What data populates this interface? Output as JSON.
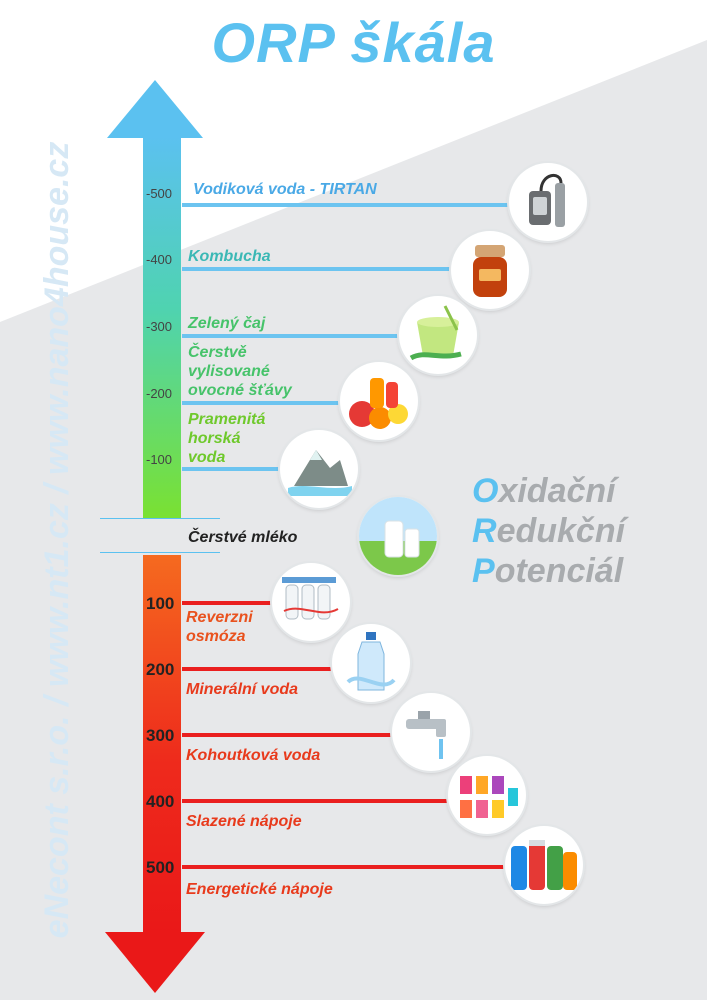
{
  "title": "ORP škála",
  "side_text": "eNecont s.r.o. / www.nt1.cz / www.nano4house.cz",
  "neutral_label": "Čerstvé mléko",
  "orp_words": [
    {
      "initial": "O",
      "rest": "xidační"
    },
    {
      "initial": "R",
      "rest": "edukční"
    },
    {
      "initial": "P",
      "rest": "otenciál"
    }
  ],
  "negative_items": [
    {
      "tick": "-500",
      "label": "Vodiková voda - TIRTAN",
      "icon": "hydrogen-generator-icon"
    },
    {
      "tick": "-400",
      "label": "Kombucha",
      "icon": "kombucha-jar-icon"
    },
    {
      "tick": "-300",
      "label": "Zelený čaj",
      "icon": "green-tea-cup-icon"
    },
    {
      "tick": "-200",
      "label_lines": [
        "Čerstvě",
        "vylisované",
        "ovocné šťávy"
      ],
      "icon": "fruit-juice-icon"
    },
    {
      "tick": "-100",
      "label_lines": [
        "Pramenitá",
        "horská",
        "voda"
      ],
      "icon": "mountain-spring-icon"
    }
  ],
  "positive_items": [
    {
      "tick": "100",
      "label_lines": [
        "Reverzni",
        "osmóza"
      ],
      "icon": "reverse-osmosis-filter-icon"
    },
    {
      "tick": "200",
      "label": "Minerální voda",
      "icon": "mineral-water-bottle-icon"
    },
    {
      "tick": "300",
      "label": "Kohoutková voda",
      "icon": "water-tap-icon"
    },
    {
      "tick": "400",
      "label": "Slazené nápoje",
      "icon": "sweet-drinks-icon"
    },
    {
      "tick": "500",
      "label": "Energetické nápoje",
      "icon": "energy-drinks-cans-icon"
    }
  ],
  "colors": {
    "title": "#5bc1f0",
    "arrow_top": "#5bc1f0",
    "arrow_mid": "#5fd67a",
    "arrow_green": "#77e03a",
    "arrow_orange": "#f45a1c",
    "arrow_red": "#ee1c1c",
    "negative_lines": "#6cc4f0",
    "positive_lines": "#ea1f1f",
    "background_band": "#e7e8ea"
  }
}
